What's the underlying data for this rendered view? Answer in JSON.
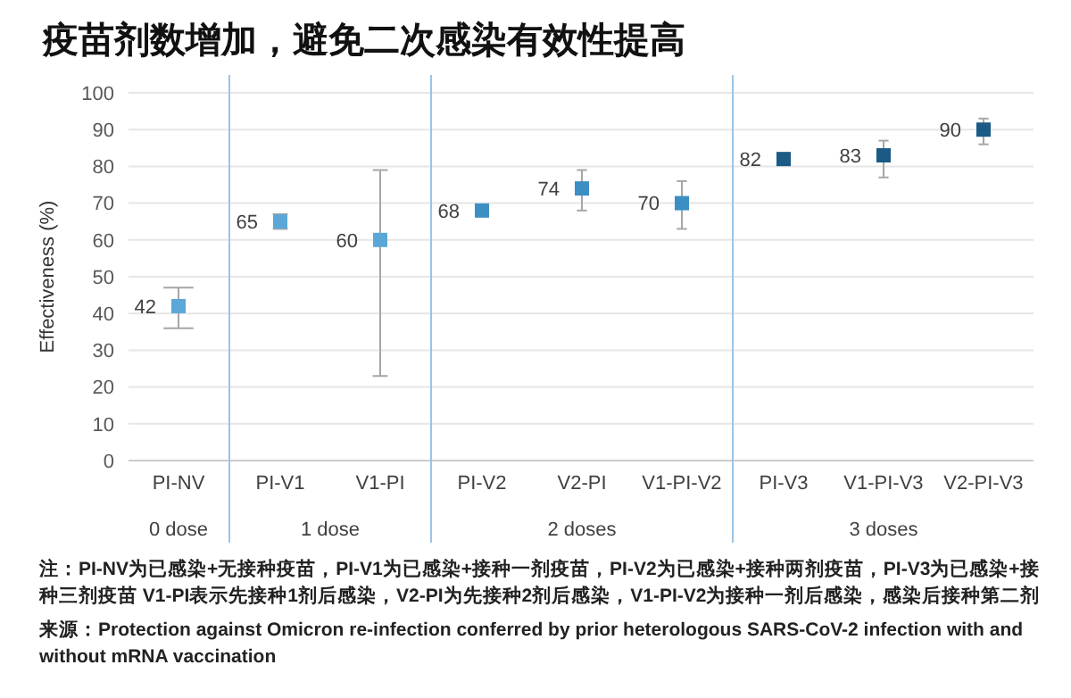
{
  "chart_data": [
    {
      "type": "scatter",
      "title": "疫苗剂数增加，避免二次感染有效性提高",
      "ylabel": "Effectiveness (%)",
      "xlabel": "0 dose",
      "categories": [
        "PI-NV"
      ],
      "values": [
        42
      ],
      "colors": [
        "#5aa7d8"
      ],
      "errors": [
        [
          36,
          47
        ]
      ],
      "data_labels": true,
      "marker": "square",
      "grid": "y",
      "ylim": [
        0,
        100
      ],
      "yticks": [
        0,
        10,
        20,
        30,
        40,
        50,
        60,
        70,
        80,
        90,
        100
      ],
      "annotations": [
        "注：PI-NV为已感染+无接种疫苗，PI-V1为已感染+接种一剂疫苗，PI-V2为已感染+接种两剂疫苗，PI-V3为已感染+接种三剂疫苗 V1-PI表示先接种1剂后感染，V2-PI为先接种2剂后感染，V1-PI-V2为接种一剂后感染，感染后接种第二剂",
        "来源：Protection against Omicron re-infection conferred by prior heterologous SARS-CoV-2 infection with and without mRNA vaccination"
      ]
    },
    {
      "type": "scatter",
      "xlabel": "1 dose",
      "categories": [
        "PI-V1",
        "V1-PI"
      ],
      "values": [
        65,
        60
      ],
      "colors": [
        "#5aa7d8",
        "#5aa7d8"
      ],
      "errors": [
        [
          63,
          67
        ],
        [
          23,
          79
        ]
      ],
      "data_labels": true,
      "marker": "square",
      "grid": "y",
      "ylim": [
        0,
        100
      ],
      "yticks": [
        0,
        10,
        20,
        30,
        40,
        50,
        60,
        70,
        80,
        90,
        100
      ],
      "tick_labels": "x"
    },
    {
      "type": "scatter",
      "xlabel": "2 doses",
      "categories": [
        "PI-V2",
        "V2-PI",
        "V1-PI-V2"
      ],
      "values": [
        68,
        74,
        70
      ],
      "colors": [
        "#3c8fc3",
        "#3c8fc3",
        "#3c8fc3"
      ],
      "errors": [
        null,
        [
          68,
          79
        ],
        [
          63,
          76
        ]
      ],
      "data_labels": true,
      "marker": "square",
      "grid": "y",
      "ylim": [
        0,
        100
      ],
      "yticks": [
        0,
        10,
        20,
        30,
        40,
        50,
        60,
        70,
        80,
        90,
        100
      ],
      "tick_labels": "x"
    },
    {
      "type": "scatter",
      "xlabel": "3 doses",
      "categories": [
        "PI-V3",
        "V1-PI-V3",
        "V2-PI-V3"
      ],
      "values": [
        82,
        83,
        90
      ],
      "colors": [
        "#1c5a86",
        "#1c5a86",
        "#1c5a86"
      ],
      "errors": [
        null,
        [
          77,
          87
        ],
        [
          86,
          93
        ]
      ],
      "data_labels": true,
      "marker": "square",
      "grid": "y",
      "ylim": [
        0,
        100
      ],
      "yticks": [
        0,
        10,
        20,
        30,
        40,
        50,
        60,
        70,
        80,
        90,
        100
      ],
      "tick_labels": "x"
    }
  ]
}
